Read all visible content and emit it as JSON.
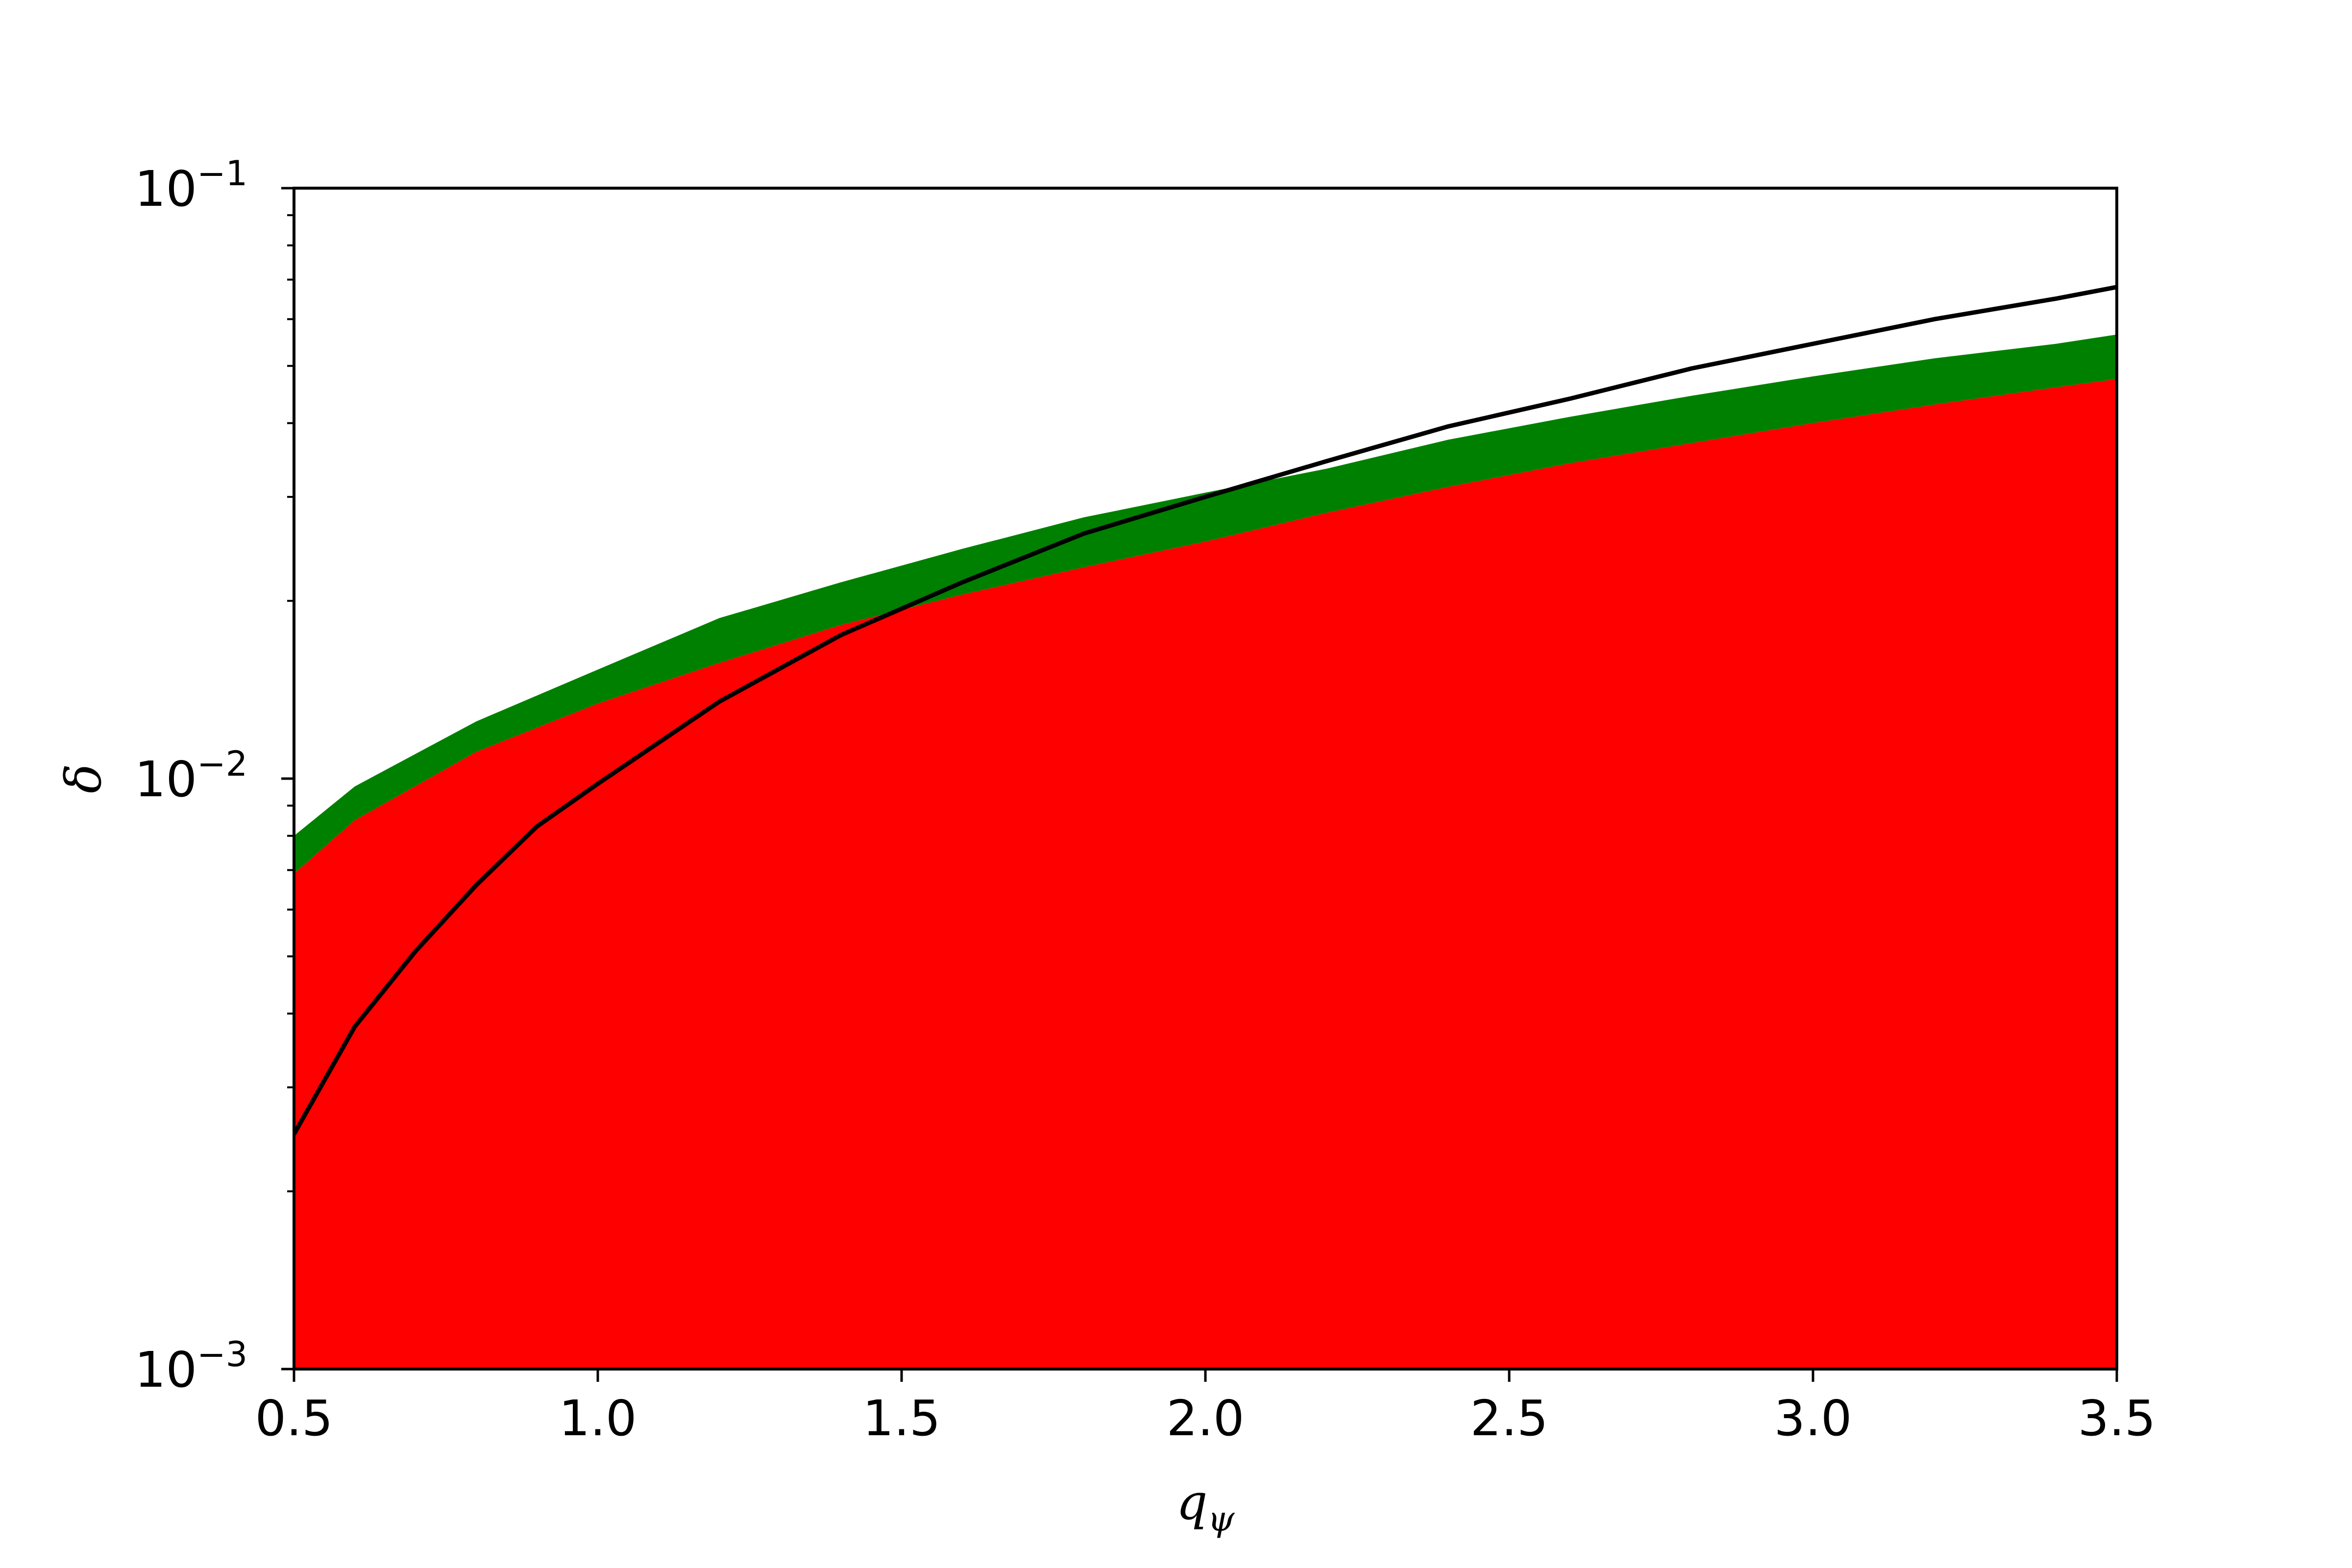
{
  "chart_data": {
    "type": "area",
    "title": "",
    "xlabel": "q",
    "xlabel_subscript": "ψ",
    "ylabel": "δ",
    "xlim": [
      0.5,
      3.5
    ],
    "ylim": [
      0.001,
      0.1
    ],
    "yscale": "log",
    "grid": false,
    "legend": "none",
    "x_ticks": [
      "0.5",
      "1.0",
      "1.5",
      "2.0",
      "2.5",
      "3.0",
      "3.5"
    ],
    "y_ticks": [
      {
        "base": "10",
        "exp": "−3",
        "value": 0.001
      },
      {
        "base": "10",
        "exp": "−2",
        "value": 0.01
      },
      {
        "base": "10",
        "exp": "−1",
        "value": 0.1
      }
    ],
    "colors": {
      "red_region": "#ff0000",
      "green_band": "#008000",
      "black_curve": "#000000"
    },
    "series": [
      {
        "kind": "filled-area-to-axis",
        "color": "#ff0000",
        "x": [
          0.5,
          0.6,
          0.8,
          1.0,
          1.2,
          1.4,
          1.6,
          1.8,
          2.0,
          2.2,
          2.4,
          2.6,
          2.8,
          3.0,
          3.2,
          3.4,
          3.5
        ],
        "y": [
          0.0069,
          0.0085,
          0.0111,
          0.0134,
          0.0157,
          0.0182,
          0.0205,
          0.0228,
          0.0252,
          0.0282,
          0.0312,
          0.0342,
          0.037,
          0.04,
          0.043,
          0.046,
          0.0475
        ]
      },
      {
        "kind": "band",
        "color": "#008000",
        "x": [
          0.5,
          0.6,
          0.8,
          1.0,
          1.2,
          1.4,
          1.6,
          1.8,
          2.0,
          2.2,
          2.4,
          2.6,
          2.8,
          3.0,
          3.2,
          3.4,
          3.5
        ],
        "y_low": [
          0.0069,
          0.0085,
          0.0111,
          0.0134,
          0.0157,
          0.0182,
          0.0205,
          0.0228,
          0.0252,
          0.0282,
          0.0312,
          0.0342,
          0.037,
          0.04,
          0.043,
          0.046,
          0.0475
        ],
        "y_high": [
          0.008,
          0.0097,
          0.0125,
          0.0153,
          0.0187,
          0.0215,
          0.0245,
          0.0277,
          0.0305,
          0.0335,
          0.0375,
          0.041,
          0.0445,
          0.048,
          0.0515,
          0.0545,
          0.0565
        ]
      },
      {
        "kind": "line",
        "color": "#000000",
        "x": [
          0.5,
          0.6,
          0.7,
          0.8,
          0.9,
          1.0,
          1.2,
          1.4,
          1.6,
          1.8,
          2.0,
          2.2,
          2.4,
          2.6,
          2.8,
          3.0,
          3.2,
          3.4,
          3.5
        ],
        "y": [
          0.0025,
          0.0038,
          0.0051,
          0.0066,
          0.0083,
          0.0098,
          0.0135,
          0.0175,
          0.0215,
          0.026,
          0.03,
          0.0345,
          0.0395,
          0.044,
          0.0495,
          0.0545,
          0.06,
          0.065,
          0.068
        ]
      }
    ]
  }
}
